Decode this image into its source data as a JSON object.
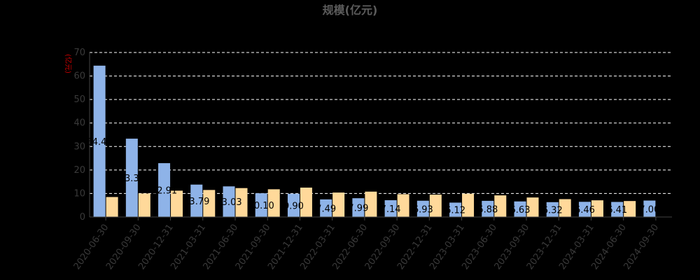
{
  "chart_data": {
    "type": "bar",
    "title": "规模(亿元)",
    "ylabel": "(亿元)",
    "xlabel": "",
    "ylim": [
      0,
      70
    ],
    "yticks": [
      0,
      10,
      20,
      30,
      40,
      50,
      60,
      70
    ],
    "grid": true,
    "categories": [
      "2020-06-30",
      "2020-09-30",
      "2020-12-31",
      "2021-03-31",
      "2021-06-30",
      "2021-09-30",
      "2021-12-31",
      "2022-03-31",
      "2022-06-30",
      "2022-09-30",
      "2022-12-31",
      "2023-03-31",
      "2023-06-30",
      "2023-09-30",
      "2023-12-31",
      "2024-03-31",
      "2024-06-30",
      "2024-09-30"
    ],
    "series": [
      {
        "values": [
          64.4,
          33.33,
          22.91,
          13.79,
          13.03,
          10.1,
          9.9,
          7.49,
          7.99,
          7.14,
          6.93,
          6.12,
          6.88,
          6.63,
          6.32,
          6.46,
          6.41,
          7.0
        ],
        "labels": [
          "64.40",
          "33.33",
          "22.91",
          "13.79",
          "13.03",
          "10.10",
          "9.90",
          "7.49",
          "7.99",
          "7.14",
          "6.93",
          "6.12",
          "6.88",
          "6.63",
          "6.32",
          "6.46",
          "6.41",
          "7.00"
        ]
      },
      {
        "values": [
          8.5,
          10.0,
          11.2,
          11.5,
          12.3,
          11.8,
          12.5,
          10.4,
          10.8,
          9.7,
          9.5,
          9.9,
          9.2,
          8.3,
          7.6,
          7.1,
          6.8,
          null
        ]
      }
    ],
    "colors": {
      "series1": "#8eb3e8",
      "series2": "#ffd99a",
      "title": "#5c5c5c",
      "unit": "#cc0000",
      "axis": "#444444",
      "grid": "#ffffff"
    }
  }
}
